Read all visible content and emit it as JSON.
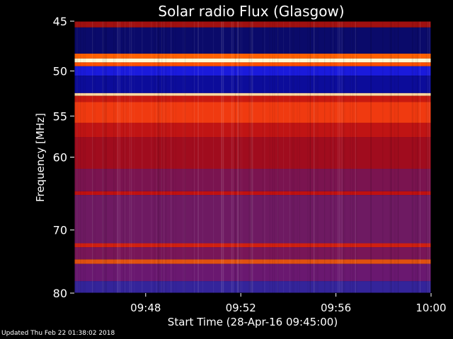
{
  "chart_data": {
    "type": "heatmap",
    "title": "Solar radio Flux (Glasgow)",
    "xlabel": "Start Time (28-Apr-16 09:45:00)",
    "ylabel": "Frequency [MHz]",
    "x_range_minutes": [
      0,
      15
    ],
    "x_ticks": [
      {
        "minute": 3,
        "label": "09:48"
      },
      {
        "minute": 7,
        "label": "09:52"
      },
      {
        "minute": 11,
        "label": "09:56"
      },
      {
        "minute": 15,
        "label": "10:00"
      }
    ],
    "ylim": [
      45,
      80
    ],
    "y_ticks": [
      45,
      50,
      55,
      60,
      70,
      80
    ],
    "y_axis_scale": "log",
    "grid": false,
    "colormap": "blue-purple-red-white",
    "frequency_bands": [
      {
        "from": 45.0,
        "to": 45.6,
        "color": "#a01010"
      },
      {
        "from": 45.6,
        "to": 48.2,
        "color": "#0a0a6a"
      },
      {
        "from": 48.2,
        "to": 48.7,
        "color": "#ff6000"
      },
      {
        "from": 48.7,
        "to": 49.1,
        "color": "#fff8d0"
      },
      {
        "from": 49.1,
        "to": 49.5,
        "color": "#ff5000"
      },
      {
        "from": 49.5,
        "to": 50.5,
        "color": "#1a1adc"
      },
      {
        "from": 50.5,
        "to": 52.4,
        "color": "#0c0c9a"
      },
      {
        "from": 52.4,
        "to": 52.7,
        "color": "#ffd8a0"
      },
      {
        "from": 52.7,
        "to": 53.4,
        "color": "#c81a10"
      },
      {
        "from": 53.4,
        "to": 55.8,
        "color": "#f03a10"
      },
      {
        "from": 55.8,
        "to": 57.5,
        "color": "#c01414"
      },
      {
        "from": 57.5,
        "to": 61.5,
        "color": "#a00c1e"
      },
      {
        "from": 61.5,
        "to": 64.5,
        "color": "#7a1450"
      },
      {
        "from": 64.5,
        "to": 65.0,
        "color": "#c01010"
      },
      {
        "from": 65.0,
        "to": 72.0,
        "color": "#6e1a62"
      },
      {
        "from": 72.0,
        "to": 72.6,
        "color": "#d02010"
      },
      {
        "from": 72.6,
        "to": 74.5,
        "color": "#781658"
      },
      {
        "from": 74.5,
        "to": 75.2,
        "color": "#e05010"
      },
      {
        "from": 75.2,
        "to": 78.0,
        "color": "#6a1870"
      },
      {
        "from": 78.0,
        "to": 80.0,
        "color": "#34249a"
      }
    ]
  },
  "footer": {
    "updated_text": "Updated Thu Feb 22 01:38:02 2018"
  }
}
